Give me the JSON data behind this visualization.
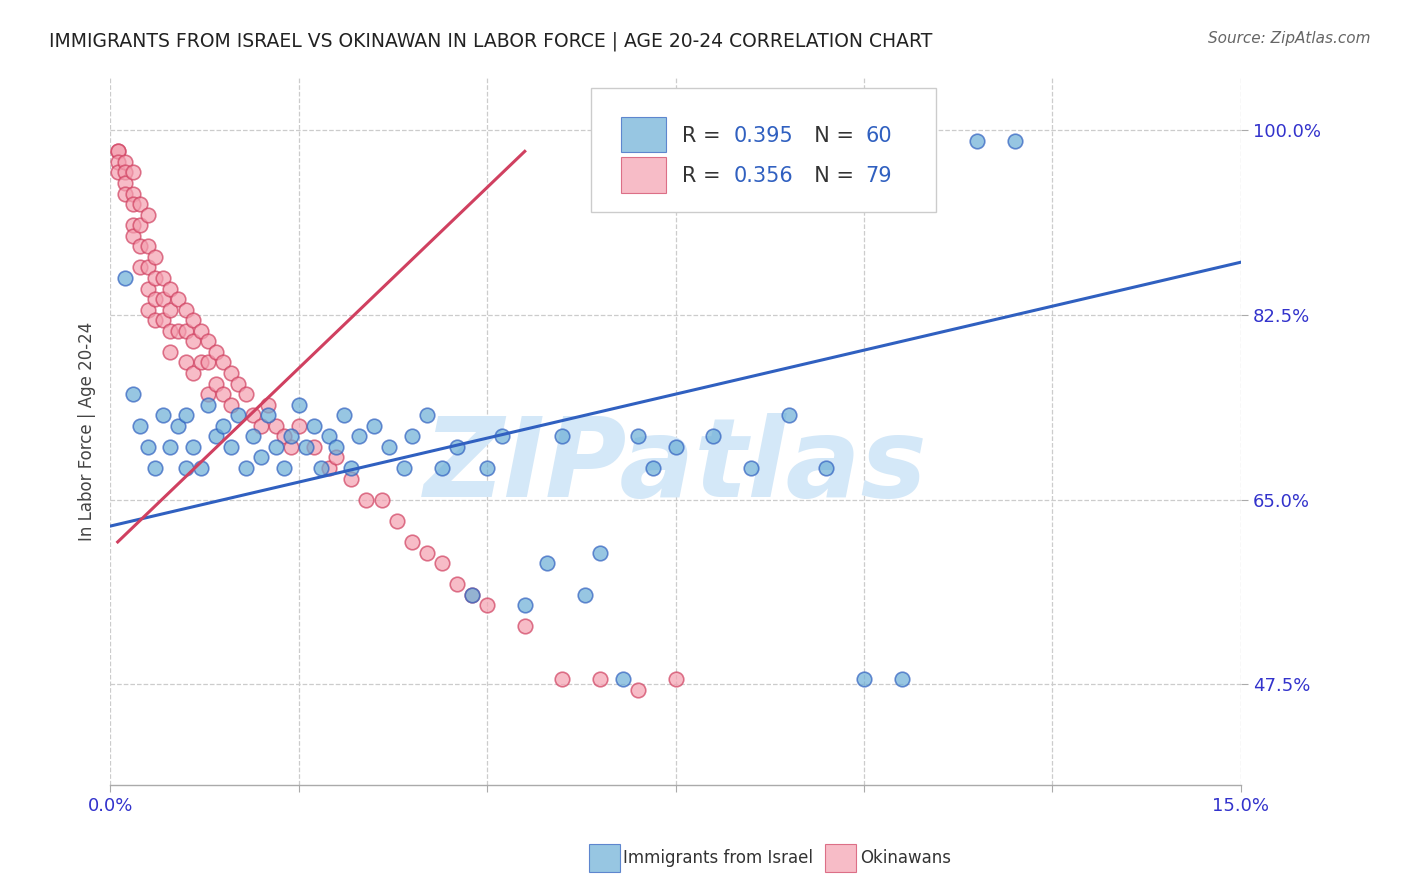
{
  "title": "IMMIGRANTS FROM ISRAEL VS OKINAWAN IN LABOR FORCE | AGE 20-24 CORRELATION CHART",
  "source": "Source: ZipAtlas.com",
  "ylabel": "In Labor Force | Age 20-24",
  "xlim": [
    0.0,
    0.15
  ],
  "ylim": [
    0.38,
    1.05
  ],
  "xticks": [
    0.0,
    0.025,
    0.05,
    0.075,
    0.1,
    0.125,
    0.15
  ],
  "yticks": [
    0.475,
    0.65,
    0.825,
    1.0
  ],
  "yticklabels": [
    "47.5%",
    "65.0%",
    "82.5%",
    "100.0%"
  ],
  "watermark": "ZIPatlas",
  "blue_scatter_x": [
    0.002,
    0.003,
    0.004,
    0.005,
    0.006,
    0.007,
    0.008,
    0.009,
    0.01,
    0.01,
    0.011,
    0.012,
    0.013,
    0.014,
    0.015,
    0.016,
    0.017,
    0.018,
    0.019,
    0.02,
    0.021,
    0.022,
    0.023,
    0.024,
    0.025,
    0.026,
    0.027,
    0.028,
    0.029,
    0.03,
    0.031,
    0.032,
    0.033,
    0.035,
    0.037,
    0.039,
    0.04,
    0.042,
    0.044,
    0.046,
    0.048,
    0.05,
    0.052,
    0.055,
    0.058,
    0.06,
    0.063,
    0.065,
    0.068,
    0.07,
    0.072,
    0.075,
    0.08,
    0.085,
    0.09,
    0.095,
    0.1,
    0.105,
    0.115,
    0.12
  ],
  "blue_scatter_y": [
    0.86,
    0.75,
    0.72,
    0.7,
    0.68,
    0.73,
    0.7,
    0.72,
    0.73,
    0.68,
    0.7,
    0.68,
    0.74,
    0.71,
    0.72,
    0.7,
    0.73,
    0.68,
    0.71,
    0.69,
    0.73,
    0.7,
    0.68,
    0.71,
    0.74,
    0.7,
    0.72,
    0.68,
    0.71,
    0.7,
    0.73,
    0.68,
    0.71,
    0.72,
    0.7,
    0.68,
    0.71,
    0.73,
    0.68,
    0.7,
    0.56,
    0.68,
    0.71,
    0.55,
    0.59,
    0.71,
    0.56,
    0.6,
    0.48,
    0.71,
    0.68,
    0.7,
    0.71,
    0.68,
    0.73,
    0.68,
    0.48,
    0.48,
    0.99,
    0.99
  ],
  "pink_scatter_x": [
    0.001,
    0.001,
    0.001,
    0.001,
    0.002,
    0.002,
    0.002,
    0.002,
    0.003,
    0.003,
    0.003,
    0.003,
    0.003,
    0.004,
    0.004,
    0.004,
    0.004,
    0.005,
    0.005,
    0.005,
    0.005,
    0.005,
    0.006,
    0.006,
    0.006,
    0.006,
    0.007,
    0.007,
    0.007,
    0.008,
    0.008,
    0.008,
    0.008,
    0.009,
    0.009,
    0.01,
    0.01,
    0.01,
    0.011,
    0.011,
    0.011,
    0.012,
    0.012,
    0.013,
    0.013,
    0.013,
    0.014,
    0.014,
    0.015,
    0.015,
    0.016,
    0.016,
    0.017,
    0.018,
    0.019,
    0.02,
    0.021,
    0.022,
    0.023,
    0.024,
    0.025,
    0.027,
    0.029,
    0.03,
    0.032,
    0.034,
    0.036,
    0.038,
    0.04,
    0.042,
    0.044,
    0.046,
    0.048,
    0.05,
    0.055,
    0.06,
    0.065,
    0.07,
    0.075
  ],
  "pink_scatter_y": [
    0.98,
    0.98,
    0.97,
    0.96,
    0.97,
    0.96,
    0.95,
    0.94,
    0.96,
    0.94,
    0.93,
    0.91,
    0.9,
    0.93,
    0.91,
    0.89,
    0.87,
    0.92,
    0.89,
    0.87,
    0.85,
    0.83,
    0.88,
    0.86,
    0.84,
    0.82,
    0.86,
    0.84,
    0.82,
    0.85,
    0.83,
    0.81,
    0.79,
    0.84,
    0.81,
    0.83,
    0.81,
    0.78,
    0.82,
    0.8,
    0.77,
    0.81,
    0.78,
    0.8,
    0.78,
    0.75,
    0.79,
    0.76,
    0.78,
    0.75,
    0.77,
    0.74,
    0.76,
    0.75,
    0.73,
    0.72,
    0.74,
    0.72,
    0.71,
    0.7,
    0.72,
    0.7,
    0.68,
    0.69,
    0.67,
    0.65,
    0.65,
    0.63,
    0.61,
    0.6,
    0.59,
    0.57,
    0.56,
    0.55,
    0.53,
    0.48,
    0.48,
    0.47,
    0.48
  ],
  "blue_line_x": [
    0.0,
    0.15
  ],
  "blue_line_y": [
    0.625,
    0.875
  ],
  "pink_line_x": [
    0.001,
    0.055
  ],
  "pink_line_y": [
    0.61,
    0.98
  ],
  "blue_color": "#6baed6",
  "pink_color": "#f4a0b0",
  "blue_line_color": "#3060c0",
  "pink_line_color": "#d04060",
  "grid_color": "#cccccc",
  "axis_color": "#3333cc",
  "title_color": "#222222",
  "watermark_color": "#d4e8f8",
  "background_color": "#ffffff",
  "legend_blue_r": "0.395",
  "legend_blue_n": "60",
  "legend_pink_r": "0.356",
  "legend_pink_n": "79"
}
